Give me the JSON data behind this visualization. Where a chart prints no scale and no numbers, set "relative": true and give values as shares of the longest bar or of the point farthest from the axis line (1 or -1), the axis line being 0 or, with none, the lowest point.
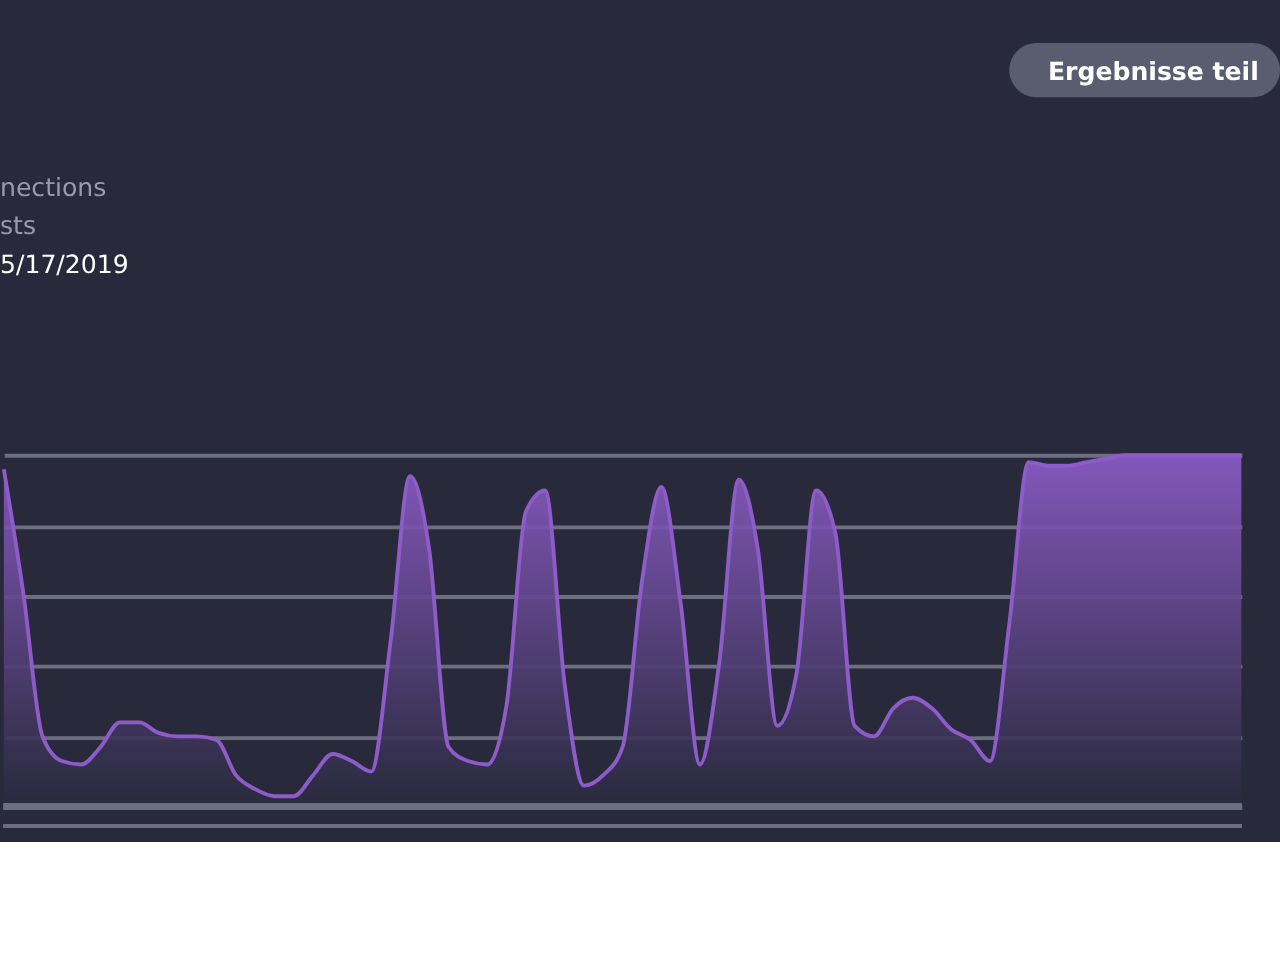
{
  "chart_data": {
    "type": "area",
    "relative": true,
    "grid": "y",
    "tick_labels": false,
    "annotations": [
      "nections",
      "sts",
      "5/17/2019",
      "Ergebnisse teil"
    ],
    "categories": [
      null,
      null,
      null,
      null,
      null,
      null,
      null,
      null,
      null,
      null,
      null,
      null,
      null,
      null,
      null,
      null,
      null,
      null,
      null,
      null,
      null,
      null,
      null,
      null,
      null,
      null,
      null,
      null,
      null,
      null,
      null,
      null,
      null,
      null,
      null,
      null,
      null,
      null,
      null,
      null,
      null,
      null,
      null,
      null,
      null,
      null,
      null,
      null,
      null,
      null,
      null,
      null,
      null,
      null,
      null,
      null,
      null,
      null,
      null,
      null,
      null,
      null,
      null,
      null,
      null
    ],
    "series": [
      {
        "color": "#8e5cc9",
        "values": [
          0.96,
          0.61,
          0.2,
          0.13,
          0.12,
          0.17,
          0.24,
          0.24,
          0.21,
          0.2,
          0.2,
          0.19,
          0.09,
          0.05,
          0.03,
          0.03,
          0.09,
          0.15,
          0.13,
          0.1,
          0.47,
          0.94,
          0.73,
          0.17,
          0.13,
          0.12,
          0.29,
          0.84,
          0.9,
          0.35,
          0.06,
          0.09,
          0.17,
          0.64,
          0.91,
          0.58,
          0.12,
          0.41,
          0.93,
          0.73,
          0.23,
          0.38,
          0.9,
          0.78,
          0.23,
          0.2,
          0.28,
          0.31,
          0.28,
          0.22,
          0.19,
          0.13,
          0.52,
          0.98,
          0.97,
          0.97,
          0.98,
          0.99,
          1,
          1,
          1,
          1,
          1,
          1,
          1
        ]
      }
    ]
  }
}
